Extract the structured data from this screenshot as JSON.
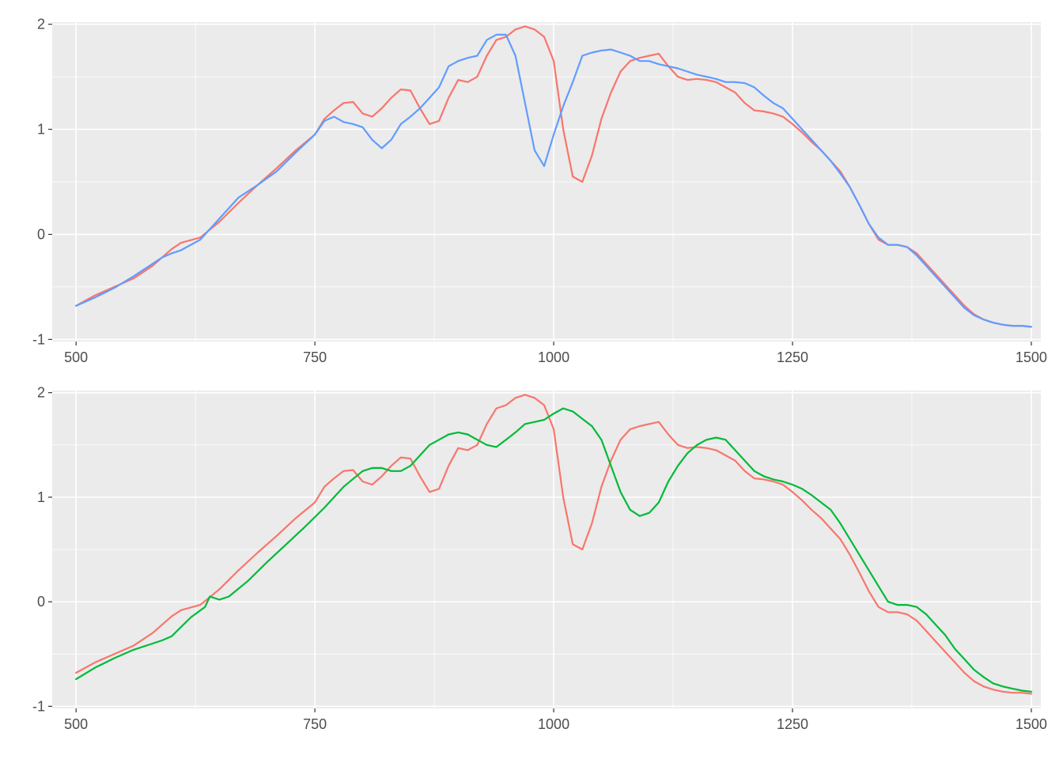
{
  "chart_data": [
    {
      "type": "line",
      "title": "",
      "xlabel": "",
      "ylabel": "",
      "xlim": [
        475,
        1510
      ],
      "ylim": [
        -1.02,
        2.02
      ],
      "x_ticks": [
        500,
        750,
        1000,
        1250,
        1500
      ],
      "y_ticks": [
        -1,
        0,
        1,
        2
      ],
      "grid": true,
      "legend": "none",
      "series": [
        {
          "color": "#F8766D",
          "x": [
            500,
            520,
            540,
            560,
            580,
            590,
            600,
            610,
            630,
            650,
            670,
            690,
            710,
            730,
            750,
            760,
            770,
            780,
            790,
            800,
            810,
            820,
            830,
            840,
            850,
            860,
            870,
            880,
            890,
            900,
            910,
            920,
            930,
            940,
            950,
            960,
            970,
            980,
            990,
            1000,
            1010,
            1020,
            1030,
            1040,
            1050,
            1060,
            1070,
            1080,
            1090,
            1100,
            1110,
            1120,
            1130,
            1140,
            1150,
            1160,
            1170,
            1180,
            1190,
            1200,
            1210,
            1220,
            1230,
            1240,
            1250,
            1260,
            1270,
            1280,
            1290,
            1300,
            1310,
            1320,
            1330,
            1340,
            1350,
            1360,
            1370,
            1380,
            1390,
            1400,
            1410,
            1420,
            1430,
            1440,
            1450,
            1460,
            1470,
            1480,
            1490,
            1500
          ],
          "y": [
            -0.68,
            -0.58,
            -0.5,
            -0.42,
            -0.3,
            -0.22,
            -0.14,
            -0.08,
            -0.03,
            0.12,
            0.3,
            0.47,
            0.63,
            0.8,
            0.95,
            1.1,
            1.18,
            1.25,
            1.26,
            1.15,
            1.12,
            1.2,
            1.3,
            1.38,
            1.37,
            1.2,
            1.05,
            1.08,
            1.3,
            1.47,
            1.45,
            1.5,
            1.7,
            1.85,
            1.88,
            1.95,
            1.98,
            1.95,
            1.88,
            1.65,
            1.0,
            0.55,
            0.5,
            0.75,
            1.1,
            1.35,
            1.55,
            1.65,
            1.68,
            1.7,
            1.72,
            1.6,
            1.5,
            1.47,
            1.48,
            1.47,
            1.45,
            1.4,
            1.35,
            1.25,
            1.18,
            1.17,
            1.15,
            1.12,
            1.05,
            0.97,
            0.88,
            0.8,
            0.7,
            0.6,
            0.45,
            0.28,
            0.1,
            -0.05,
            -0.1,
            -0.1,
            -0.12,
            -0.18,
            -0.28,
            -0.38,
            -0.48,
            -0.58,
            -0.68,
            -0.76,
            -0.81,
            -0.84,
            -0.86,
            -0.87,
            -0.87,
            -0.88
          ]
        },
        {
          "color": "#619CFF",
          "x": [
            500,
            520,
            540,
            560,
            580,
            590,
            600,
            610,
            630,
            650,
            670,
            690,
            710,
            730,
            750,
            760,
            770,
            780,
            790,
            800,
            810,
            820,
            830,
            840,
            850,
            860,
            870,
            880,
            890,
            900,
            910,
            920,
            930,
            940,
            950,
            960,
            970,
            980,
            990,
            1000,
            1010,
            1020,
            1030,
            1040,
            1050,
            1060,
            1070,
            1080,
            1090,
            1100,
            1110,
            1120,
            1130,
            1140,
            1150,
            1160,
            1170,
            1180,
            1190,
            1200,
            1210,
            1220,
            1230,
            1240,
            1250,
            1260,
            1270,
            1280,
            1290,
            1300,
            1310,
            1320,
            1330,
            1340,
            1350,
            1360,
            1370,
            1380,
            1390,
            1400,
            1410,
            1420,
            1430,
            1440,
            1450,
            1460,
            1470,
            1480,
            1490,
            1500
          ],
          "y": [
            -0.68,
            -0.6,
            -0.51,
            -0.4,
            -0.28,
            -0.22,
            -0.18,
            -0.15,
            -0.05,
            0.15,
            0.35,
            0.47,
            0.6,
            0.78,
            0.95,
            1.08,
            1.12,
            1.07,
            1.05,
            1.02,
            0.9,
            0.82,
            0.9,
            1.05,
            1.12,
            1.2,
            1.3,
            1.4,
            1.6,
            1.65,
            1.68,
            1.7,
            1.85,
            1.9,
            1.9,
            1.7,
            1.25,
            0.8,
            0.65,
            0.95,
            1.22,
            1.45,
            1.7,
            1.73,
            1.75,
            1.76,
            1.73,
            1.7,
            1.65,
            1.65,
            1.62,
            1.6,
            1.58,
            1.55,
            1.52,
            1.5,
            1.48,
            1.45,
            1.45,
            1.44,
            1.4,
            1.32,
            1.25,
            1.2,
            1.1,
            1.0,
            0.9,
            0.8,
            0.7,
            0.58,
            0.45,
            0.28,
            0.1,
            -0.03,
            -0.1,
            -0.1,
            -0.12,
            -0.2,
            -0.3,
            -0.4,
            -0.5,
            -0.6,
            -0.7,
            -0.77,
            -0.81,
            -0.84,
            -0.86,
            -0.87,
            -0.87,
            -0.88
          ]
        }
      ]
    },
    {
      "type": "line",
      "title": "",
      "xlabel": "",
      "ylabel": "",
      "xlim": [
        475,
        1510
      ],
      "ylim": [
        -1.02,
        2.02
      ],
      "x_ticks": [
        500,
        750,
        1000,
        1250,
        1500
      ],
      "y_ticks": [
        -1,
        0,
        1,
        2
      ],
      "grid": true,
      "legend": "none",
      "series": [
        {
          "color": "#F8766D",
          "x": [
            500,
            520,
            540,
            560,
            580,
            590,
            600,
            610,
            630,
            650,
            670,
            690,
            710,
            730,
            750,
            760,
            770,
            780,
            790,
            800,
            810,
            820,
            830,
            840,
            850,
            860,
            870,
            880,
            890,
            900,
            910,
            920,
            930,
            940,
            950,
            960,
            970,
            980,
            990,
            1000,
            1010,
            1020,
            1030,
            1040,
            1050,
            1060,
            1070,
            1080,
            1090,
            1100,
            1110,
            1120,
            1130,
            1140,
            1150,
            1160,
            1170,
            1180,
            1190,
            1200,
            1210,
            1220,
            1230,
            1240,
            1250,
            1260,
            1270,
            1280,
            1290,
            1300,
            1310,
            1320,
            1330,
            1340,
            1350,
            1360,
            1370,
            1380,
            1390,
            1400,
            1410,
            1420,
            1430,
            1440,
            1450,
            1460,
            1470,
            1480,
            1490,
            1500
          ],
          "y": [
            -0.68,
            -0.58,
            -0.5,
            -0.42,
            -0.3,
            -0.22,
            -0.14,
            -0.08,
            -0.03,
            0.12,
            0.3,
            0.47,
            0.63,
            0.8,
            0.95,
            1.1,
            1.18,
            1.25,
            1.26,
            1.15,
            1.12,
            1.2,
            1.3,
            1.38,
            1.37,
            1.2,
            1.05,
            1.08,
            1.3,
            1.47,
            1.45,
            1.5,
            1.7,
            1.85,
            1.88,
            1.95,
            1.98,
            1.95,
            1.88,
            1.65,
            1.0,
            0.55,
            0.5,
            0.75,
            1.1,
            1.35,
            1.55,
            1.65,
            1.68,
            1.7,
            1.72,
            1.6,
            1.5,
            1.47,
            1.48,
            1.47,
            1.45,
            1.4,
            1.35,
            1.25,
            1.18,
            1.17,
            1.15,
            1.12,
            1.05,
            0.97,
            0.88,
            0.8,
            0.7,
            0.6,
            0.45,
            0.28,
            0.1,
            -0.05,
            -0.1,
            -0.1,
            -0.12,
            -0.18,
            -0.28,
            -0.38,
            -0.48,
            -0.58,
            -0.68,
            -0.76,
            -0.81,
            -0.84,
            -0.86,
            -0.87,
            -0.87,
            -0.88
          ]
        },
        {
          "color": "#00BA38",
          "x": [
            500,
            520,
            540,
            560,
            580,
            590,
            600,
            620,
            635,
            640,
            650,
            660,
            680,
            700,
            720,
            740,
            760,
            780,
            800,
            810,
            820,
            830,
            840,
            850,
            860,
            870,
            880,
            890,
            900,
            910,
            920,
            930,
            940,
            950,
            960,
            970,
            980,
            990,
            1000,
            1010,
            1020,
            1030,
            1040,
            1050,
            1060,
            1070,
            1080,
            1090,
            1100,
            1110,
            1120,
            1130,
            1140,
            1150,
            1160,
            1170,
            1180,
            1190,
            1200,
            1210,
            1220,
            1230,
            1240,
            1250,
            1260,
            1270,
            1280,
            1290,
            1300,
            1310,
            1320,
            1330,
            1340,
            1350,
            1360,
            1370,
            1380,
            1390,
            1400,
            1410,
            1420,
            1430,
            1440,
            1450,
            1460,
            1470,
            1480,
            1490,
            1500
          ],
          "y": [
            -0.74,
            -0.63,
            -0.54,
            -0.46,
            -0.4,
            -0.37,
            -0.33,
            -0.15,
            -0.05,
            0.05,
            0.02,
            0.05,
            0.2,
            0.38,
            0.55,
            0.72,
            0.9,
            1.1,
            1.25,
            1.28,
            1.28,
            1.25,
            1.25,
            1.3,
            1.4,
            1.5,
            1.55,
            1.6,
            1.62,
            1.6,
            1.55,
            1.5,
            1.48,
            1.55,
            1.62,
            1.7,
            1.72,
            1.74,
            1.8,
            1.85,
            1.82,
            1.75,
            1.68,
            1.55,
            1.3,
            1.05,
            0.88,
            0.82,
            0.85,
            0.95,
            1.15,
            1.3,
            1.42,
            1.5,
            1.55,
            1.57,
            1.55,
            1.45,
            1.35,
            1.25,
            1.2,
            1.17,
            1.15,
            1.12,
            1.08,
            1.02,
            0.95,
            0.88,
            0.75,
            0.6,
            0.45,
            0.3,
            0.15,
            0.0,
            -0.03,
            -0.03,
            -0.05,
            -0.12,
            -0.22,
            -0.32,
            -0.45,
            -0.55,
            -0.65,
            -0.72,
            -0.78,
            -0.81,
            -0.83,
            -0.85,
            -0.86
          ]
        }
      ]
    }
  ]
}
